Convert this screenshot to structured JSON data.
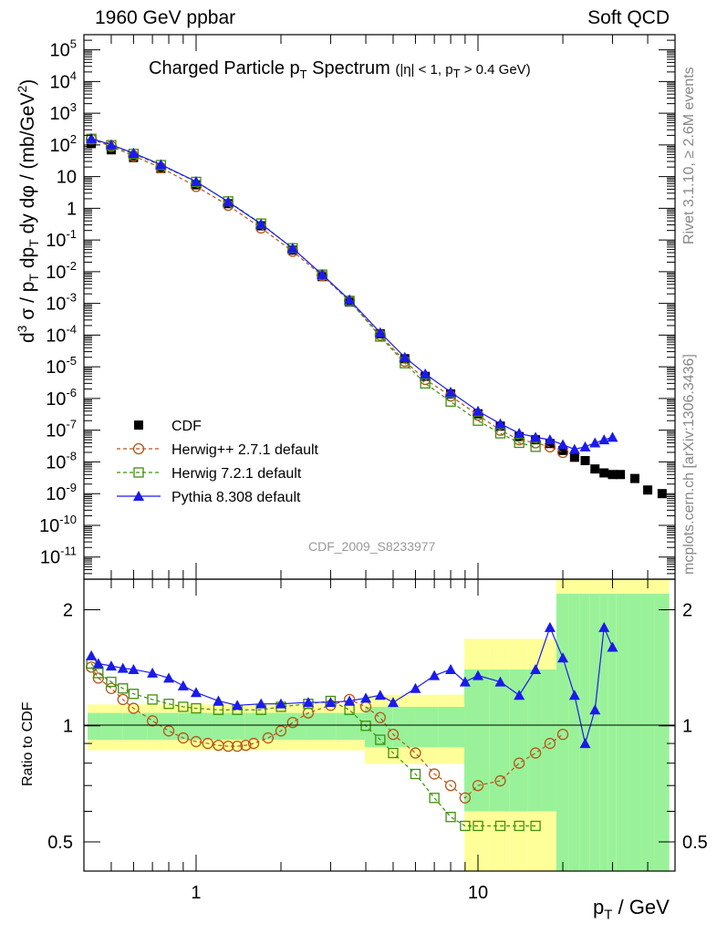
{
  "header": {
    "left": "1960 GeV ppbar",
    "right": "Soft QCD"
  },
  "side_labels": {
    "version": "Rivet 3.1.10, ≥ 2.6M events",
    "source": "mcplots.cern.ch [arXiv:1306.3436]"
  },
  "analysis_id": "CDF_2009_S8233977",
  "colors": {
    "cdf": "#000000",
    "herwigpp": "#b5561a",
    "herwig7": "#3f8f0c",
    "pythia": "#1a1aee",
    "band_inner": "#99f299",
    "band_outer": "#ffff99"
  },
  "chart_data": [
    {
      "type": "scatter",
      "title": "Charged Particle pT Spectrum",
      "title_parts": {
        "main": "Charged Particle p",
        "sub": "T",
        "rest": " Spectrum",
        "cut": "(|η| < 1, p",
        "cut_sub": "T",
        "cut_rest": " > 0.4 GeV)"
      },
      "xlabel": "p_T / GeV",
      "ylabel": "d^3 σ / p_T dp_T dy dφ / (mb/GeV^2)",
      "xscale": "log",
      "yscale": "log",
      "xlim": [
        0.4,
        50
      ],
      "ylim": [
        2e-12,
        300000.0
      ],
      "x_ticks": [
        "1",
        "10"
      ],
      "y_ticks": [
        "10^5",
        "10^4",
        "10^3",
        "10^2",
        "10",
        "1",
        "10^-1",
        "10^-2",
        "10^-3",
        "10^-4",
        "10^-5",
        "10^-6",
        "10^-7",
        "10^-8",
        "10^-9",
        "10^-10",
        "10^-11"
      ],
      "legend_position": "bottom-left",
      "series": [
        {
          "name": "CDF",
          "marker": "square",
          "x": [
            0.425,
            0.5,
            0.6,
            0.75,
            1.0,
            1.3,
            1.7,
            2.2,
            2.8,
            3.5,
            4.5,
            5.5,
            6.5,
            8,
            10,
            12,
            14,
            16,
            18,
            20,
            22,
            24,
            26,
            28,
            30,
            32,
            36,
            40,
            45
          ],
          "y": [
            110,
            70,
            40,
            18,
            5.5,
            1.4,
            0.28,
            0.048,
            0.007,
            0.0011,
            0.00011,
            1.8e-05,
            5e-06,
            1.4e-06,
            3.3e-07,
            1.35e-07,
            6.3e-08,
            5e-08,
            3.8e-08,
            2.3e-08,
            1.4e-08,
            1.1e-08,
            6e-09,
            4.5e-09,
            4e-09,
            4e-09,
            3e-09,
            1.3e-09,
            1e-09
          ]
        },
        {
          "name": "Herwig++ 2.7.1 default",
          "marker": "open-circle",
          "x": [
            0.425,
            0.5,
            0.6,
            0.75,
            1.0,
            1.3,
            1.7,
            2.2,
            2.8,
            3.5,
            4.5,
            5.5,
            6.5,
            8,
            10,
            12,
            14,
            16,
            18,
            20
          ],
          "y": [
            150,
            90,
            45,
            19,
            4.9,
            1.24,
            0.24,
            0.044,
            0.0075,
            0.0012,
            0.0001,
            1.5e-05,
            4e-06,
            1.2e-06,
            3e-07,
            1e-07,
            5e-08,
            4e-08,
            3e-08,
            2e-08
          ]
        },
        {
          "name": "Herwig 7.2.1 default",
          "marker": "open-square",
          "x": [
            0.425,
            0.5,
            0.6,
            0.75,
            1.0,
            1.3,
            1.7,
            2.2,
            2.8,
            3.5,
            4.5,
            5.5,
            6.5,
            8,
            10,
            12,
            14,
            16
          ],
          "y": [
            155,
            98,
            52,
            23,
            6.8,
            1.65,
            0.33,
            0.055,
            0.0081,
            0.0012,
            9e-05,
            1.3e-05,
            3e-06,
            8e-07,
            2e-07,
            8e-08,
            4e-08,
            3e-08
          ]
        },
        {
          "name": "Pythia 8.308 default",
          "marker": "triangle",
          "x": [
            0.425,
            0.5,
            0.6,
            0.75,
            1.0,
            1.3,
            1.7,
            2.2,
            2.8,
            3.5,
            4.5,
            5.5,
            6.5,
            8,
            10,
            12,
            14,
            16,
            18,
            20,
            22,
            24,
            26,
            28,
            30
          ],
          "y": [
            160,
            101,
            55,
            24,
            7,
            1.6,
            0.32,
            0.055,
            0.0082,
            0.0013,
            0.00012,
            2e-05,
            6e-06,
            1.6e-06,
            4e-07,
            1.6e-07,
            8e-08,
            6e-08,
            5e-08,
            3.5e-08,
            2.5e-08,
            3e-08,
            4e-08,
            5e-08,
            6e-08
          ]
        }
      ]
    },
    {
      "type": "line",
      "title": "Ratio to CDF",
      "ylabel": "Ratio to CDF",
      "xlabel": "p_T / GeV",
      "xscale": "log",
      "yscale": "log",
      "xlim": [
        0.4,
        50
      ],
      "ylim": [
        0.42,
        2.4
      ],
      "y_ticks": [
        "2",
        "1",
        "0.5"
      ],
      "series": [
        {
          "name": "Herwig++ 2.7.1 default",
          "x": [
            0.425,
            0.45,
            0.5,
            0.55,
            0.6,
            0.7,
            0.8,
            0.9,
            1.0,
            1.1,
            1.2,
            1.3,
            1.4,
            1.5,
            1.6,
            1.8,
            2.0,
            2.2,
            2.5,
            3.0,
            3.5,
            4.0,
            4.5,
            5,
            6,
            7,
            8,
            9,
            10,
            12,
            14,
            16,
            18,
            20
          ],
          "y": [
            1.42,
            1.33,
            1.25,
            1.17,
            1.11,
            1.03,
            0.97,
            0.93,
            0.91,
            0.9,
            0.89,
            0.885,
            0.885,
            0.89,
            0.9,
            0.93,
            0.97,
            1.02,
            1.08,
            1.13,
            1.17,
            1.12,
            1.05,
            0.95,
            0.85,
            0.75,
            0.7,
            0.65,
            0.7,
            0.72,
            0.8,
            0.85,
            0.9,
            0.95
          ]
        },
        {
          "name": "Herwig 7.2.1 default",
          "x": [
            0.425,
            0.45,
            0.5,
            0.55,
            0.6,
            0.7,
            0.8,
            0.9,
            1.0,
            1.2,
            1.4,
            1.7,
            2.0,
            2.5,
            3.0,
            3.5,
            4.0,
            4.5,
            5,
            6,
            7,
            8,
            9,
            10,
            12,
            14,
            16
          ],
          "y": [
            1.45,
            1.37,
            1.3,
            1.25,
            1.21,
            1.17,
            1.14,
            1.12,
            1.11,
            1.1,
            1.1,
            1.1,
            1.12,
            1.14,
            1.16,
            1.1,
            1.0,
            0.92,
            0.85,
            0.75,
            0.65,
            0.58,
            0.55,
            0.55,
            0.55,
            0.55,
            0.55
          ]
        },
        {
          "name": "Pythia 8.308 default",
          "x": [
            0.425,
            0.45,
            0.5,
            0.55,
            0.6,
            0.7,
            0.8,
            0.9,
            1.0,
            1.2,
            1.4,
            1.7,
            2.0,
            2.5,
            3.0,
            3.5,
            4.0,
            4.5,
            5,
            6,
            7,
            8,
            9,
            10,
            12,
            14,
            16,
            18,
            20,
            22,
            24,
            26,
            28,
            30
          ],
          "y": [
            1.52,
            1.45,
            1.43,
            1.41,
            1.4,
            1.37,
            1.33,
            1.27,
            1.22,
            1.16,
            1.13,
            1.14,
            1.14,
            1.15,
            1.15,
            1.16,
            1.18,
            1.2,
            1.15,
            1.25,
            1.35,
            1.4,
            1.3,
            1.35,
            1.3,
            1.2,
            1.4,
            1.8,
            1.5,
            1.2,
            0.9,
            1.1,
            1.8,
            1.6
          ]
        }
      ]
    }
  ]
}
